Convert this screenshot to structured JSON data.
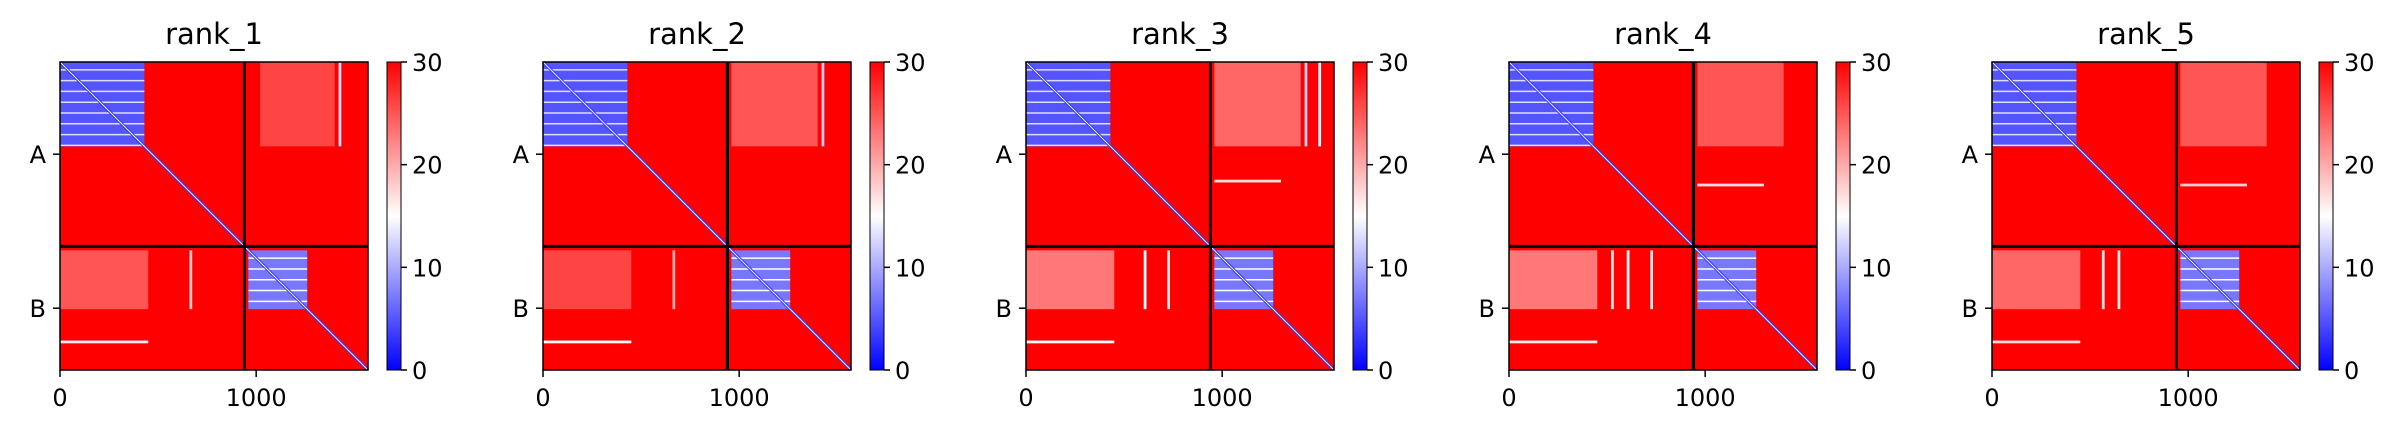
{
  "colormap": {
    "low": "#0000ff",
    "mid": "#ffffff",
    "high": "#ff0000",
    "min": 0,
    "max": 30,
    "ticks": [
      0,
      10,
      20,
      30
    ]
  },
  "chart_data": [
    {
      "type": "heatmap",
      "title": "rank_1",
      "xlim": [
        0,
        1570
      ],
      "ylim": [
        1570,
        0
      ],
      "xticks": [
        0,
        1000
      ],
      "chain_boundary": 940,
      "chain_labels": [
        "A",
        "B"
      ],
      "chain_label_positions": [
        470,
        1255
      ],
      "blocks": [
        {
          "x": [
            0,
            430
          ],
          "y": [
            0,
            430
          ],
          "value": 5
        },
        {
          "x": [
            960,
            1260
          ],
          "y": [
            960,
            1260
          ],
          "value": 7
        },
        {
          "x": [
            1020,
            1400
          ],
          "y": [
            0,
            430
          ],
          "value": 26
        },
        {
          "x": [
            0,
            450
          ],
          "y": [
            960,
            1260
          ],
          "value": 25
        }
      ],
      "stripes": [
        {
          "axis": "col",
          "at": 1420,
          "span": [
            0,
            430
          ],
          "width": 14,
          "value": 13
        },
        {
          "axis": "col",
          "at": 660,
          "span": [
            960,
            1260
          ],
          "width": 14,
          "value": 18
        },
        {
          "axis": "row",
          "at": 1420,
          "span": [
            0,
            450
          ],
          "width": 14,
          "value": 14
        }
      ]
    },
    {
      "type": "heatmap",
      "title": "rank_2",
      "xlim": [
        0,
        1570
      ],
      "ylim": [
        1570,
        0
      ],
      "xticks": [
        0,
        1000
      ],
      "chain_boundary": 940,
      "chain_labels": [
        "A",
        "B"
      ],
      "chain_label_positions": [
        470,
        1255
      ],
      "blocks": [
        {
          "x": [
            0,
            430
          ],
          "y": [
            0,
            430
          ],
          "value": 5
        },
        {
          "x": [
            960,
            1260
          ],
          "y": [
            960,
            1260
          ],
          "value": 7
        },
        {
          "x": [
            960,
            1400
          ],
          "y": [
            0,
            430
          ],
          "value": 25
        },
        {
          "x": [
            0,
            450
          ],
          "y": [
            960,
            1260
          ],
          "value": 26
        }
      ],
      "stripes": [
        {
          "axis": "col",
          "at": 1420,
          "span": [
            0,
            430
          ],
          "width": 14,
          "value": 12
        },
        {
          "axis": "col",
          "at": 660,
          "span": [
            960,
            1260
          ],
          "width": 14,
          "value": 20
        },
        {
          "axis": "row",
          "at": 1420,
          "span": [
            0,
            450
          ],
          "width": 14,
          "value": 15
        }
      ]
    },
    {
      "type": "heatmap",
      "title": "rank_3",
      "xlim": [
        0,
        1570
      ],
      "ylim": [
        1570,
        0
      ],
      "xticks": [
        0,
        1000
      ],
      "chain_boundary": 940,
      "chain_labels": [
        "A",
        "B"
      ],
      "chain_label_positions": [
        470,
        1255
      ],
      "blocks": [
        {
          "x": [
            0,
            430
          ],
          "y": [
            0,
            430
          ],
          "value": 5
        },
        {
          "x": [
            960,
            1260
          ],
          "y": [
            960,
            1260
          ],
          "value": 7
        },
        {
          "x": [
            960,
            1400
          ],
          "y": [
            0,
            430
          ],
          "value": 24
        },
        {
          "x": [
            0,
            450
          ],
          "y": [
            960,
            1260
          ],
          "value": 23
        }
      ],
      "stripes": [
        {
          "axis": "col",
          "at": 1420,
          "span": [
            0,
            430
          ],
          "width": 14,
          "value": 12
        },
        {
          "axis": "col",
          "at": 1490,
          "span": [
            0,
            430
          ],
          "width": 14,
          "value": 14
        },
        {
          "axis": "col",
          "at": 600,
          "span": [
            960,
            1260
          ],
          "width": 14,
          "value": 15
        },
        {
          "axis": "col",
          "at": 720,
          "span": [
            960,
            1260
          ],
          "width": 14,
          "value": 16
        },
        {
          "axis": "row",
          "at": 600,
          "span": [
            960,
            1300
          ],
          "width": 14,
          "value": 17
        },
        {
          "axis": "row",
          "at": 1420,
          "span": [
            0,
            450
          ],
          "width": 14,
          "value": 15
        }
      ]
    },
    {
      "type": "heatmap",
      "title": "rank_4",
      "xlim": [
        0,
        1570
      ],
      "ylim": [
        1570,
        0
      ],
      "xticks": [
        0,
        1000
      ],
      "chain_boundary": 940,
      "chain_labels": [
        "A",
        "B"
      ],
      "chain_label_positions": [
        470,
        1255
      ],
      "blocks": [
        {
          "x": [
            0,
            430
          ],
          "y": [
            0,
            430
          ],
          "value": 5
        },
        {
          "x": [
            960,
            1260
          ],
          "y": [
            960,
            1260
          ],
          "value": 7
        },
        {
          "x": [
            960,
            1400
          ],
          "y": [
            0,
            430
          ],
          "value": 25
        },
        {
          "x": [
            0,
            450
          ],
          "y": [
            960,
            1260
          ],
          "value": 23
        }
      ],
      "stripes": [
        {
          "axis": "col",
          "at": 520,
          "span": [
            960,
            1260
          ],
          "width": 14,
          "value": 16
        },
        {
          "axis": "col",
          "at": 600,
          "span": [
            960,
            1260
          ],
          "width": 14,
          "value": 15
        },
        {
          "axis": "col",
          "at": 720,
          "span": [
            960,
            1260
          ],
          "width": 14,
          "value": 17
        },
        {
          "axis": "row",
          "at": 620,
          "span": [
            960,
            1300
          ],
          "width": 14,
          "value": 17
        },
        {
          "axis": "row",
          "at": 1420,
          "span": [
            0,
            450
          ],
          "width": 14,
          "value": 16
        }
      ]
    },
    {
      "type": "heatmap",
      "title": "rank_5",
      "xlim": [
        0,
        1570
      ],
      "ylim": [
        1570,
        0
      ],
      "xticks": [
        0,
        1000
      ],
      "chain_boundary": 940,
      "chain_labels": [
        "A",
        "B"
      ],
      "chain_label_positions": [
        470,
        1255
      ],
      "blocks": [
        {
          "x": [
            0,
            430
          ],
          "y": [
            0,
            430
          ],
          "value": 5
        },
        {
          "x": [
            960,
            1260
          ],
          "y": [
            960,
            1260
          ],
          "value": 7
        },
        {
          "x": [
            960,
            1400
          ],
          "y": [
            0,
            430
          ],
          "value": 25
        },
        {
          "x": [
            0,
            450
          ],
          "y": [
            960,
            1260
          ],
          "value": 24
        }
      ],
      "stripes": [
        {
          "axis": "col",
          "at": 560,
          "span": [
            960,
            1260
          ],
          "width": 14,
          "value": 17
        },
        {
          "axis": "col",
          "at": 640,
          "span": [
            960,
            1260
          ],
          "width": 14,
          "value": 16
        },
        {
          "axis": "row",
          "at": 620,
          "span": [
            960,
            1300
          ],
          "width": 14,
          "value": 18
        },
        {
          "axis": "row",
          "at": 1420,
          "span": [
            0,
            450
          ],
          "width": 14,
          "value": 17
        }
      ]
    }
  ]
}
